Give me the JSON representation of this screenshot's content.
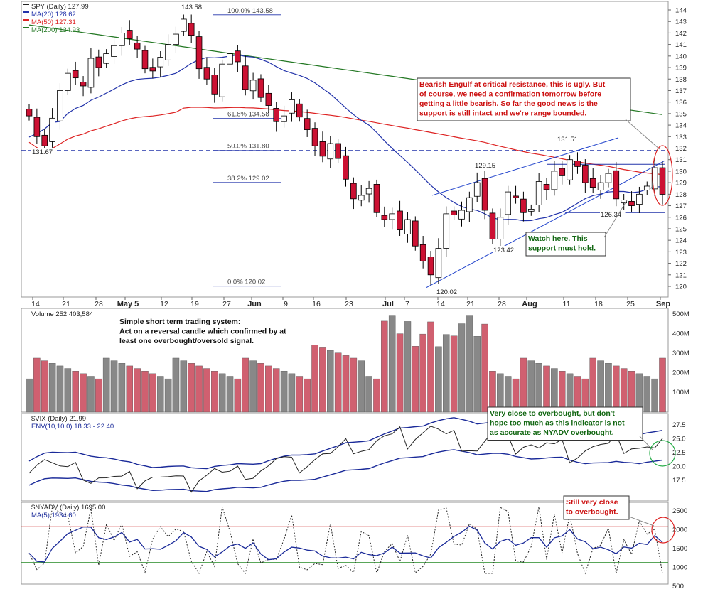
{
  "colors": {
    "up_candle": "#ffffff",
    "down_candle": "#cc1133",
    "ma20": "#2233aa",
    "ma50": "#dd2222",
    "ma200": "#227722",
    "volume_up": "#888888",
    "volume_down": "#d06070",
    "annotation_red": "#cc1111",
    "annotation_green": "#116611"
  },
  "price_panel": {
    "legend": [
      "SPY (Daily) 127.99",
      "MA(20) 128.62",
      "MA(50) 127.31",
      "MA(200) 134.93"
    ],
    "fib_labels": [
      "100.0% 143.58",
      "61.8% 134.58",
      "50.0% 131.80",
      "38.2% 129.02",
      "0.0% 120.02"
    ],
    "price_labels": [
      "143.58",
      "131.67",
      "129.15",
      "131.51",
      "123.42",
      "126.34",
      "120.02"
    ],
    "note_bearish": [
      "Bearish Engulf at critical resistance, this is ugly. But",
      "of course, we need a confirmation tomorrow before",
      "getting a little bearish. So far the good news is the",
      "support is still intact and we're range bounded."
    ],
    "note_watch": [
      "Watch here. This",
      "support must hold."
    ]
  },
  "volume_panel": {
    "legend": "Volume 252,403,584",
    "note": [
      "Simple short term trading system:",
      "Act on a reversal candle which confirmed by at",
      "least one overbought/oversold signal."
    ],
    "y_ticks": [
      "500M",
      "400M",
      "300M",
      "200M",
      "100M"
    ]
  },
  "vix_panel": {
    "legend": [
      "$VIX (Daily) 21.99",
      "ENV(10,10.0) 18.33 - 22.40"
    ],
    "note": [
      "Very close to overbought, but don't",
      "hope too much as this indicator is not",
      "as accurate as NYADV overbought."
    ],
    "y_ticks": [
      "27.5",
      "25.0",
      "22.5",
      "20.0",
      "17.5"
    ]
  },
  "nyadv_panel": {
    "legend": [
      "$NYADV (Daily) 1695.00",
      "MA(5) 1934.60"
    ],
    "note": [
      "Still very close",
      "to overbought."
    ],
    "y_ticks": [
      "2500",
      "2000",
      "1500",
      "1000",
      "500"
    ]
  },
  "x_axis_labels": [
    "14",
    "21",
    "28",
    "May 5",
    "12",
    "19",
    "27",
    "Jun",
    "9",
    "16",
    "23",
    "Jul",
    "7",
    "14",
    "21",
    "28",
    "Aug",
    "11",
    "18",
    "25",
    "Sep"
  ],
  "chart_data": {
    "type": "line",
    "title": "SPY (Daily)",
    "price_axis": {
      "ylim": [
        119,
        145
      ],
      "ticks": [
        144,
        143,
        142,
        141,
        140,
        139,
        138,
        137,
        136,
        135,
        134,
        133,
        132,
        131,
        130,
        129,
        128,
        127,
        126,
        125,
        124,
        123,
        122,
        121,
        120
      ]
    },
    "series": [
      {
        "name": "SPY",
        "values": [
          134.8,
          133.0,
          132.2,
          134.6,
          137.0,
          138.5,
          138.1,
          137.4,
          139.8,
          139.0,
          140.2,
          140.9,
          142.0,
          141.5,
          140.6,
          138.9,
          138.7,
          139.9,
          141.0,
          141.9,
          143.2,
          141.8,
          138.9,
          138.0,
          136.7,
          139.3,
          140.2,
          139.5,
          137.1,
          137.9,
          136.4,
          135.7,
          134.3,
          134.8,
          136.2,
          134.7,
          133.6,
          132.2,
          131.3,
          132.4,
          131.1,
          129.3,
          127.6,
          127.9,
          128.5,
          126.4,
          125.8,
          126.3,
          124.9,
          125.8,
          123.5,
          122.2,
          121.0,
          123.3,
          126.3,
          126.2,
          126.6,
          127.7,
          129.0,
          126.6,
          124.1,
          126.0,
          128.2,
          127.7,
          126.4,
          126.7,
          129.1,
          128.4,
          130.0,
          129.6,
          131.0,
          130.4,
          129.0,
          128.6,
          129.0,
          129.8,
          127.6,
          127.5,
          127.0,
          128.0,
          128.7,
          130.3,
          127.99
        ]
      },
      {
        "name": "MA(20)",
        "values": [
          128.62
        ]
      },
      {
        "name": "MA(50)",
        "values": [
          127.31
        ]
      },
      {
        "name": "MA(200)",
        "values": [
          134.93
        ]
      },
      {
        "name": "Volume",
        "values": [
          252403584
        ]
      },
      {
        "name": "$VIX",
        "values": [
          21.99
        ]
      },
      {
        "name": "$NYADV",
        "values": [
          1695.0
        ]
      },
      {
        "name": "MA(5)",
        "values": [
          1934.6
        ]
      }
    ],
    "fibonacci": [
      {
        "level": "100.0%",
        "value": 143.58
      },
      {
        "level": "61.8%",
        "value": 134.58
      },
      {
        "level": "50.0%",
        "value": 131.8
      },
      {
        "level": "38.2%",
        "value": 129.02
      },
      {
        "level": "0.0%",
        "value": 120.02
      }
    ],
    "nyadv_levels": [
      2000,
      1000
    ],
    "grid": false
  }
}
